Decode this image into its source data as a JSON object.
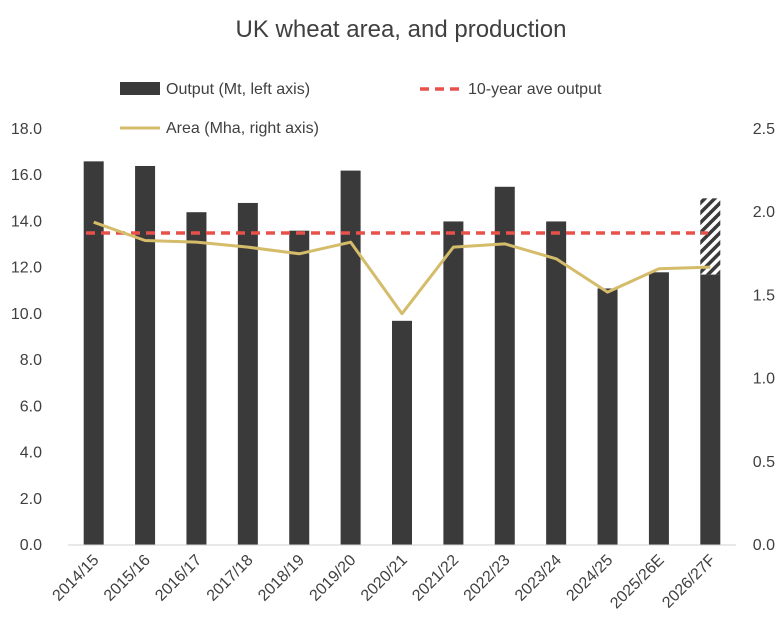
{
  "chart_data": {
    "type": "bar",
    "title": "UK wheat area, and production",
    "categories": [
      "2014/15",
      "2015/16",
      "2016/17",
      "2017/18",
      "2018/19",
      "2019/20",
      "2020/21",
      "2021/22",
      "2022/23",
      "2023/24",
      "2024/25",
      "2025/26E",
      "2026/27F"
    ],
    "series": [
      {
        "name": "Output (Mt, left axis)",
        "type": "bar",
        "axis": "left",
        "color": "#3a3a3a",
        "values": [
          16.6,
          16.4,
          14.4,
          14.8,
          13.6,
          16.2,
          9.7,
          14.0,
          15.5,
          14.0,
          11.1,
          11.8,
          11.7
        ],
        "forecast_range_top": {
          "category": "2026/27F",
          "value": 15.0,
          "pattern": "hatched"
        }
      },
      {
        "name": "10-year ave output",
        "type": "line",
        "style": "dashed",
        "axis": "left",
        "color": "#e8504a",
        "values": [
          13.5,
          13.5,
          13.5,
          13.5,
          13.5,
          13.5,
          13.5,
          13.5,
          13.5,
          13.5,
          13.5,
          13.5,
          13.5
        ]
      },
      {
        "name": "Area (Mha, right axis)",
        "type": "line",
        "axis": "right",
        "color": "#d4bc6a",
        "values": [
          1.94,
          1.83,
          1.82,
          1.79,
          1.75,
          1.82,
          1.39,
          1.79,
          1.81,
          1.72,
          1.52,
          1.66,
          1.67
        ]
      }
    ],
    "y_left": {
      "min": 0,
      "max": 18,
      "ticks": [
        "0.0",
        "2.0",
        "4.0",
        "6.0",
        "8.0",
        "10.0",
        "12.0",
        "14.0",
        "16.0",
        "18.0"
      ]
    },
    "y_right": {
      "min": 0,
      "max": 2.5,
      "ticks": [
        "0.0",
        "0.5",
        "1.0",
        "1.5",
        "2.0",
        "2.5"
      ]
    },
    "grid": false,
    "legend_position": "top"
  }
}
